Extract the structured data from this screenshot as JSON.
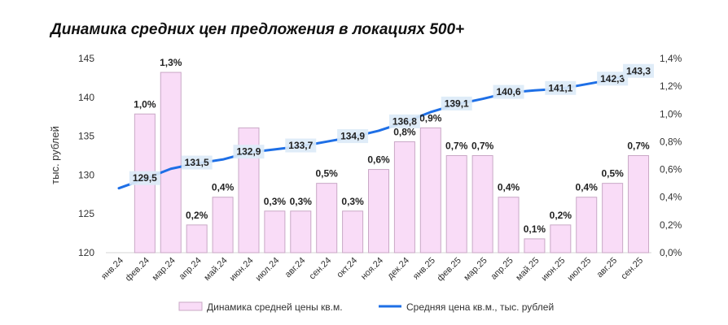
{
  "chart_data": {
    "type": "bar+line",
    "title": "Динамика средних цен предложения в локациях 500+",
    "categories": [
      "янв.24",
      "фев.24",
      "мар.24",
      "апр.24",
      "май.24",
      "июн.24",
      "июл.24",
      "авг.24",
      "сен.24",
      "окт.24",
      "ноя.24",
      "дек.24",
      "янв.25",
      "фев.25",
      "мар.25",
      "апр.25",
      "май.25",
      "июн.25",
      "июл.25",
      "авг.25",
      "сен.25"
    ],
    "series": [
      {
        "name": "Динамика средней цены кв.м.",
        "type": "bar",
        "axis": "right",
        "values": [
          null,
          1.0,
          1.3,
          0.2,
          0.4,
          0.9,
          0.3,
          0.3,
          0.5,
          0.3,
          0.6,
          0.8,
          0.9,
          0.7,
          0.7,
          0.4,
          0.1,
          0.2,
          0.4,
          0.5,
          0.7
        ],
        "labels": [
          "",
          "1,0%",
          "1,3%",
          "0,2%",
          "0,4%",
          "",
          "0,3%",
          "0,3%",
          "0,5%",
          "0,3%",
          "0,6%",
          "0,8%",
          "0,9%",
          "0,7%",
          "0,7%",
          "0,4%",
          "0,1%",
          "0,2%",
          "0,4%",
          "0,5%",
          "0,7%"
        ],
        "color": "#f9dcf7",
        "stroke": "#c9a8c6"
      },
      {
        "name": "Средняя цена кв.м., тыс. рублей",
        "type": "line",
        "axis": "left",
        "values": [
          128.3,
          129.5,
          130.8,
          131.5,
          132.0,
          132.9,
          133.3,
          133.7,
          134.3,
          134.9,
          135.7,
          136.8,
          138.1,
          139.1,
          139.8,
          140.6,
          140.9,
          141.1,
          141.7,
          142.3,
          143.3
        ],
        "labels": [
          "",
          "129,5",
          "",
          "131,5",
          "",
          "132,9",
          "",
          "133,7",
          "",
          "134,9",
          "",
          "136,8",
          "",
          "139,1",
          "",
          "140,6",
          "",
          "141,1",
          "",
          "142,3",
          "143,3"
        ],
        "color": "#1e6fe6"
      }
    ],
    "y_left": {
      "label": "тыс. рублей",
      "min": 120,
      "max": 145,
      "ticks": [
        "120",
        "125",
        "130",
        "135",
        "140",
        "145"
      ]
    },
    "y_right": {
      "min": 0,
      "max": 1.4,
      "ticks": [
        "0,0%",
        "0,2%",
        "0,4%",
        "0,6%",
        "0,8%",
        "1,0%",
        "1,2%",
        "1,4%"
      ]
    },
    "legend_position": "bottom",
    "grid": false
  }
}
